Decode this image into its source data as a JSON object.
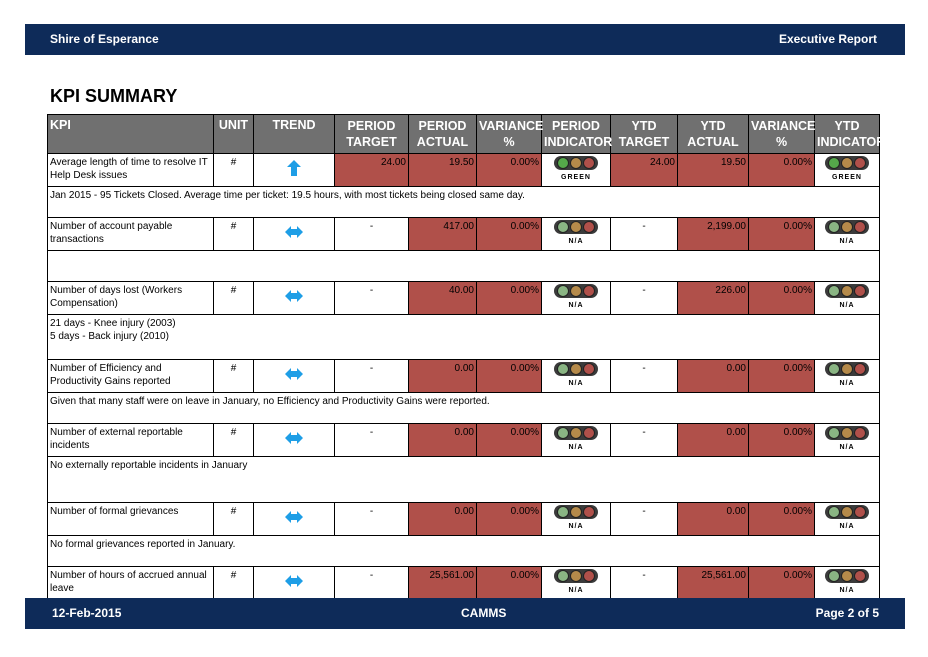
{
  "header": {
    "org": "Shire of Esperance",
    "report": "Executive Report"
  },
  "title": "KPI SUMMARY",
  "columns": {
    "kpi": "KPI",
    "unit": "UNIT",
    "trend": "TREND",
    "period_target_1": "PERIOD",
    "period_target_2": "TARGET",
    "period_actual_1": "PERIOD",
    "period_actual_2": "ACTUAL",
    "variance_1": "VARIANCE",
    "variance_2": "%",
    "period_indicator_1": "PERIOD",
    "period_indicator_2": "INDICATOR",
    "ytd_target_1": "YTD",
    "ytd_target_2": "TARGET",
    "ytd_actual_1": "YTD",
    "ytd_actual_2": "ACTUAL",
    "ytd_variance_1": "VARIANCE",
    "ytd_variance_2": "%",
    "ytd_indicator_1": "YTD",
    "ytd_indicator_2": "INDICATOR"
  },
  "rows": [
    {
      "kpi": "Average length of time to resolve IT Help Desk issues",
      "unit": "#",
      "trend": "up-arrow-icon",
      "period_target": "24.00",
      "period_actual": "19.50",
      "variance": "0.00%",
      "period_indicator": "GREEN",
      "ytd_target": "24.00",
      "ytd_actual": "19.50",
      "ytd_variance": "0.00%",
      "ytd_indicator": "GREEN",
      "comment": "Jan 2015 - 95 Tickets Closed. Average time per ticket: 19.5 hours,  with most tickets being closed same day."
    },
    {
      "kpi": "Number of account payable transactions",
      "unit": "#",
      "trend": "no-change-icon",
      "period_target": "-",
      "period_actual": "417.00",
      "variance": "0.00%",
      "period_indicator": "N/A",
      "ytd_target": "-",
      "ytd_actual": "2,199.00",
      "ytd_variance": "0.00%",
      "ytd_indicator": "N/A",
      "comment": ""
    },
    {
      "kpi": "Number of days lost (Workers Compensation)",
      "unit": "#",
      "trend": "no-change-icon",
      "period_target": "-",
      "period_actual": "40.00",
      "variance": "0.00%",
      "period_indicator": "N/A",
      "ytd_target": "-",
      "ytd_actual": "226.00",
      "ytd_variance": "0.00%",
      "ytd_indicator": "N/A",
      "comment_line1": "21 days - Knee injury (2003)",
      "comment_line2": "5 days - Back injury (2010)"
    },
    {
      "kpi": "Number of Efficiency and Productivity Gains reported",
      "unit": "#",
      "trend": "no-change-icon",
      "period_target": "-",
      "period_actual": "0.00",
      "variance": "0.00%",
      "period_indicator": "N/A",
      "ytd_target": "-",
      "ytd_actual": "0.00",
      "ytd_variance": "0.00%",
      "ytd_indicator": "N/A",
      "comment": "Given that many staff were on leave in January, no Efficiency and Productivity Gains were reported."
    },
    {
      "kpi": "Number of external reportable incidents",
      "unit": "#",
      "trend": "no-change-icon",
      "period_target": "-",
      "period_actual": "0.00",
      "variance": "0.00%",
      "period_indicator": "N/A",
      "ytd_target": "-",
      "ytd_actual": "0.00",
      "ytd_variance": "0.00%",
      "ytd_indicator": "N/A",
      "comment": "No externally reportable incidents in January"
    },
    {
      "kpi": "Number of formal grievances",
      "unit": "#",
      "trend": "no-change-icon",
      "period_target": "-",
      "period_actual": "0.00",
      "variance": "0.00%",
      "period_indicator": "N/A",
      "ytd_target": "-",
      "ytd_actual": "0.00",
      "ytd_variance": "0.00%",
      "ytd_indicator": "N/A",
      "comment": "No formal grievances reported in January."
    },
    {
      "kpi": "Number of hours of accrued annual leave",
      "unit": "#",
      "trend": "no-change-icon",
      "period_target": "-",
      "period_actual": "25,561.00",
      "variance": "0.00%",
      "period_indicator": "N/A",
      "ytd_target": "-",
      "ytd_actual": "25,561.00",
      "ytd_variance": "0.00%",
      "ytd_indicator": "N/A"
    }
  ],
  "footer": {
    "date": "12-Feb-2015",
    "brand": "CAMMS",
    "page": "Page 2 of 5"
  }
}
